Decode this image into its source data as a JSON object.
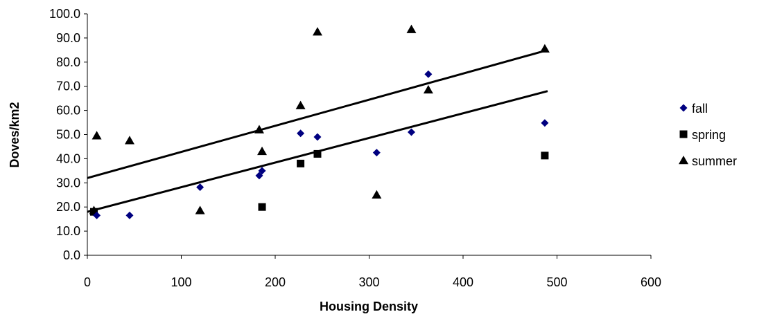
{
  "chart_data": {
    "type": "scatter",
    "title": "",
    "xlabel": "Housing Density",
    "ylabel": "Doves/km2",
    "xlim": [
      0,
      600
    ],
    "ylim": [
      0,
      100
    ],
    "x_ticks": [
      "0",
      "100",
      "200",
      "300",
      "400",
      "500",
      "600"
    ],
    "y_ticks": [
      "0.0",
      "10.0",
      "20.0",
      "30.0",
      "40.0",
      "50.0",
      "60.0",
      "70.0",
      "80.0",
      "90.0",
      "100.0"
    ],
    "grid": false,
    "legend_position": "right",
    "series": [
      {
        "name": "fall",
        "marker": "diamond",
        "color": "#000080",
        "points": [
          [
            10,
            16.5
          ],
          [
            45,
            16.5
          ],
          [
            120,
            28.2
          ],
          [
            183,
            33.0
          ],
          [
            186,
            35.0
          ],
          [
            227,
            50.5
          ],
          [
            245,
            49.0
          ],
          [
            308,
            42.5
          ],
          [
            345,
            51.0
          ],
          [
            363,
            75.0
          ],
          [
            487,
            54.8
          ]
        ]
      },
      {
        "name": "spring",
        "marker": "square",
        "color": "#000000",
        "points": [
          [
            7,
            18.0
          ],
          [
            186,
            20.0
          ],
          [
            227,
            38.0
          ],
          [
            245,
            42.0
          ],
          [
            487,
            41.3
          ]
        ]
      },
      {
        "name": "summer",
        "marker": "triangle",
        "color": "#000000",
        "points": [
          [
            7,
            18.5
          ],
          [
            10,
            49.5
          ],
          [
            45,
            47.5
          ],
          [
            120,
            18.5
          ],
          [
            183,
            52.0
          ],
          [
            186,
            43.0
          ],
          [
            227,
            62.0
          ],
          [
            245,
            92.5
          ],
          [
            308,
            25.0
          ],
          [
            345,
            93.5
          ],
          [
            363,
            68.5
          ],
          [
            487,
            85.5
          ]
        ]
      }
    ],
    "trend_lines": [
      {
        "from": [
          0,
          32.0
        ],
        "to": [
          490,
          85.0
        ]
      },
      {
        "from": [
          0,
          18.0
        ],
        "to": [
          490,
          68.0
        ]
      }
    ]
  }
}
